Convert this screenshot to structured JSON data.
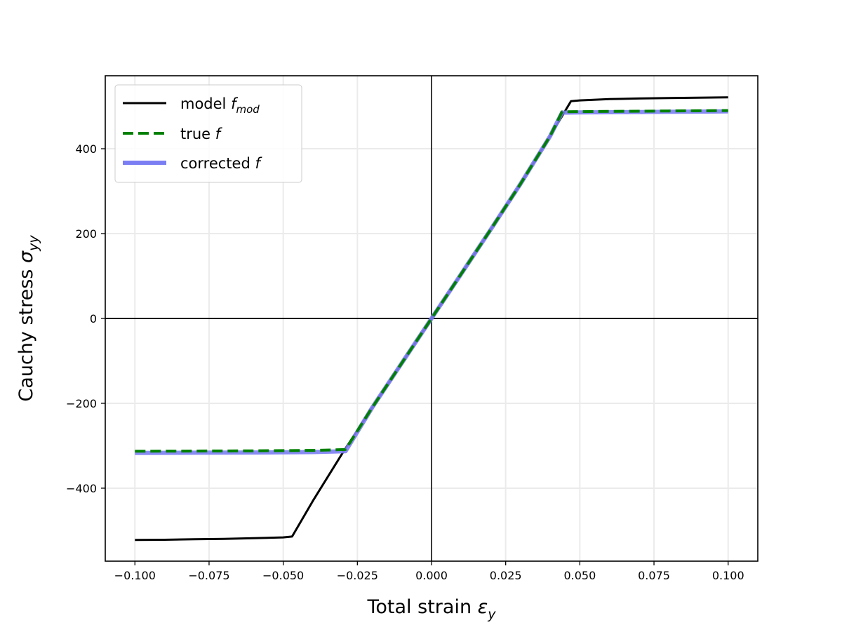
{
  "chart_data": {
    "type": "line",
    "xlabel": {
      "text": "Total strain ",
      "symbol": "ε",
      "sub": "y"
    },
    "ylabel": {
      "text": "Cauchy stress ",
      "symbol": "σ",
      "sub": "yy"
    },
    "xlim": [
      -0.11,
      0.11
    ],
    "ylim": [
      -572,
      572
    ],
    "xticks": [
      -0.1,
      -0.075,
      -0.05,
      -0.025,
      0.0,
      0.025,
      0.05,
      0.075,
      0.1
    ],
    "xtick_labels": [
      "−0.100",
      "−0.075",
      "−0.050",
      "−0.025",
      "0.000",
      "0.025",
      "0.050",
      "0.075",
      "0.100"
    ],
    "yticks": [
      -400,
      -200,
      0,
      200,
      400
    ],
    "ytick_labels": [
      "−400",
      "−200",
      "0",
      "200",
      "400"
    ],
    "grid": true,
    "reference_lines": {
      "x0": true,
      "y0": true
    },
    "legend_position": "upper left",
    "series": [
      {
        "name": "model ",
        "name_math": "f",
        "name_sub": "mod",
        "color": "#000000",
        "style": "solid",
        "x": [
          -0.1,
          -0.09,
          -0.08,
          -0.07,
          -0.06,
          -0.05,
          -0.047,
          -0.04,
          -0.03,
          -0.02,
          -0.01,
          0.0,
          0.01,
          0.02,
          0.03,
          0.04,
          0.047,
          0.05,
          0.06,
          0.07,
          0.08,
          0.09,
          0.1
        ],
        "y": [
          -522,
          -521.5,
          -520.5,
          -519.5,
          -518,
          -516,
          -514,
          -430,
          -317,
          -210,
          -105,
          0,
          105,
          210,
          317,
          430,
          512,
          514,
          517,
          518.5,
          519.5,
          520.5,
          521
        ]
      },
      {
        "name": "true ",
        "name_math": "f",
        "name_sub": "",
        "color": "#008000",
        "style": "dashed",
        "x": [
          -0.1,
          -0.08,
          -0.06,
          -0.04,
          -0.029,
          -0.02,
          -0.01,
          0.0,
          0.01,
          0.02,
          0.03,
          0.04,
          0.044,
          0.05,
          0.06,
          0.07,
          0.08,
          0.09,
          0.1
        ],
        "y": [
          -313,
          -312.5,
          -312,
          -311,
          -309,
          -210,
          -105,
          0,
          105,
          210,
          317,
          430,
          487,
          487.5,
          488,
          488.5,
          489,
          489.5,
          490
        ]
      },
      {
        "name": "corrected ",
        "name_math": "f",
        "name_sub": "",
        "color": "#7b7ef2",
        "style": "solid-thick",
        "x": [
          -0.1,
          -0.08,
          -0.06,
          -0.04,
          -0.029,
          -0.02,
          -0.01,
          0.0,
          0.01,
          0.02,
          0.03,
          0.04,
          0.044,
          0.05,
          0.06,
          0.07,
          0.08,
          0.09,
          0.1
        ],
        "y": [
          -317,
          -316.5,
          -316,
          -315,
          -313,
          -210,
          -105,
          0,
          105,
          210,
          317,
          430,
          485,
          485.5,
          486,
          486.5,
          487,
          487.5,
          488
        ]
      }
    ]
  }
}
